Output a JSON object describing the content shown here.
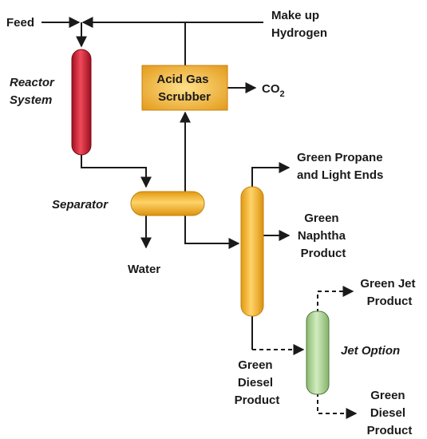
{
  "nodes": {
    "feed": "Feed",
    "makeup": [
      "Make up",
      "Hydrogen"
    ],
    "reactor": [
      "Reactor",
      "System"
    ],
    "scrubber": [
      "Acid Gas",
      "Scrubber"
    ],
    "co2": {
      "text": "CO",
      "subscript": "2"
    },
    "separator": "Separator",
    "water": "Water",
    "propane": [
      "Green Propane",
      "and Light Ends"
    ],
    "naphtha": [
      "Green",
      "Naphtha",
      "Product"
    ],
    "diesel": [
      "Green",
      "Diesel",
      "Product"
    ],
    "jet_option": "Jet Option",
    "jet": [
      "Green Jet",
      "Product"
    ],
    "jet_diesel": [
      "Green",
      "Diesel",
      "Product"
    ]
  }
}
